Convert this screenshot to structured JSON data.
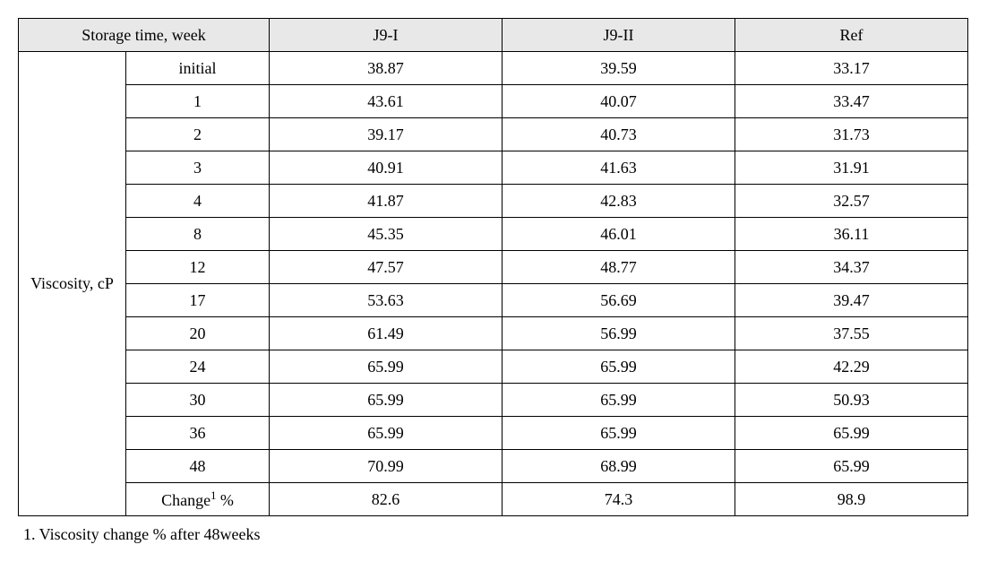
{
  "table": {
    "header_left": "Storage time, week",
    "columns": [
      "J9-I",
      "J9-II",
      "Ref"
    ],
    "rowhead": "Viscosity, cP",
    "time_labels": [
      "initial",
      "1",
      "2",
      "3",
      "4",
      "8",
      "12",
      "17",
      "20",
      "24",
      "30",
      "36",
      "48"
    ],
    "change_label_pre": "Change",
    "change_label_sup": "1",
    "change_label_post": " %",
    "data": {
      "J9-I": [
        "38.87",
        "43.61",
        "39.17",
        "40.91",
        "41.87",
        "45.35",
        "47.57",
        "53.63",
        "61.49",
        "65.99",
        "65.99",
        "65.99",
        "70.99"
      ],
      "J9-II": [
        "39.59",
        "40.07",
        "40.73",
        "41.63",
        "42.83",
        "46.01",
        "48.77",
        "56.69",
        "56.99",
        "65.99",
        "65.99",
        "65.99",
        "68.99"
      ],
      "Ref": [
        "33.17",
        "33.47",
        "31.73",
        "31.91",
        "32.57",
        "36.11",
        "34.37",
        "39.47",
        "37.55",
        "42.29",
        "50.93",
        "65.99",
        "65.99"
      ]
    },
    "change_row": [
      "82.6",
      "74.3",
      "98.9"
    ]
  },
  "footnote": "1. Viscosity change % after 48weeks",
  "style": {
    "header_bg": "#e8e8e8",
    "border_color": "#000000",
    "font_family": "Times New Roman, serif",
    "font_size_pt": 14
  }
}
